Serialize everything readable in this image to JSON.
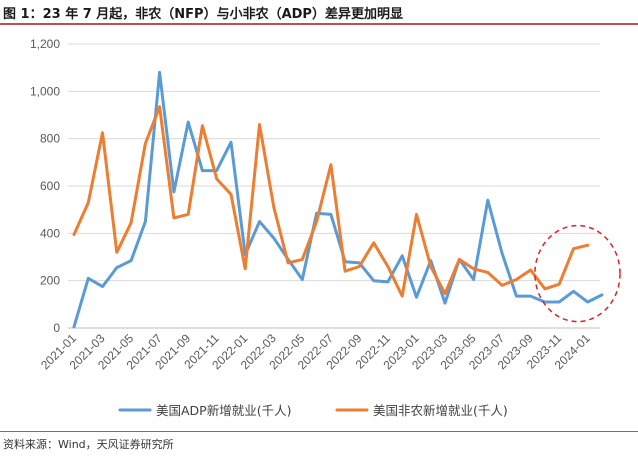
{
  "title": "图 1：23 年 7 月起，非农（NFP）与小非农（ADP）差异更加明显",
  "source": "资料来源：Wind，天风证券研究所",
  "colors": {
    "adp": "#5B9BD5",
    "nfp": "#ED7D31",
    "rule": "#c0504d",
    "circle": "#e02020"
  },
  "chart_data": {
    "type": "line",
    "x": [
      "2021-01",
      "2021-02",
      "2021-03",
      "2021-04",
      "2021-05",
      "2021-06",
      "2021-07",
      "2021-08",
      "2021-09",
      "2021-10",
      "2021-11",
      "2021-12",
      "2022-01",
      "2022-02",
      "2022-03",
      "2022-04",
      "2022-05",
      "2022-06",
      "2022-07",
      "2022-08",
      "2022-09",
      "2022-10",
      "2022-11",
      "2022-12",
      "2023-01",
      "2023-02",
      "2023-03",
      "2023-04",
      "2023-05",
      "2023-06",
      "2023-07",
      "2023-08",
      "2023-09",
      "2023-10",
      "2023-11",
      "2023-12",
      "2024-01",
      "2024-02"
    ],
    "x_tick_labels": [
      "2021-01",
      "2021-03",
      "2021-05",
      "2021-07",
      "2021-09",
      "2021-11",
      "2022-01",
      "2022-03",
      "2022-05",
      "2022-07",
      "2022-09",
      "2022-11",
      "2023-01",
      "2023-03",
      "2023-05",
      "2023-07",
      "2023-09",
      "2023-11",
      "2024-01"
    ],
    "y_tick_labels": [
      "0",
      "200",
      "400",
      "600",
      "800",
      "1,000",
      "1,200"
    ],
    "ylim": [
      0,
      1200
    ],
    "grid": "horizontal",
    "legend_position": "bottom",
    "series": [
      {
        "name": "美国ADP新增就业(千人)",
        "color": "#5B9BD5",
        "values": [
          5,
          210,
          175,
          255,
          285,
          450,
          1080,
          575,
          870,
          665,
          665,
          785,
          310,
          450,
          380,
          290,
          205,
          485,
          480,
          280,
          275,
          200,
          195,
          305,
          130,
          285,
          105,
          290,
          205,
          540,
          315,
          135,
          135,
          110,
          110,
          155,
          110,
          140
        ]
      },
      {
        "name": "美国非农新增就业(千人)",
        "color": "#ED7D31",
        "values": [
          395,
          530,
          825,
          320,
          445,
          780,
          935,
          465,
          480,
          855,
          630,
          565,
          250,
          860,
          510,
          275,
          290,
          450,
          690,
          240,
          260,
          360,
          260,
          135,
          480,
          260,
          145,
          290,
          250,
          235,
          180,
          205,
          245,
          165,
          185,
          335,
          350,
          null
        ]
      }
    ],
    "annotation": {
      "type": "dashed-ellipse",
      "around_x": [
        "2023-10",
        "2024-02"
      ]
    }
  }
}
